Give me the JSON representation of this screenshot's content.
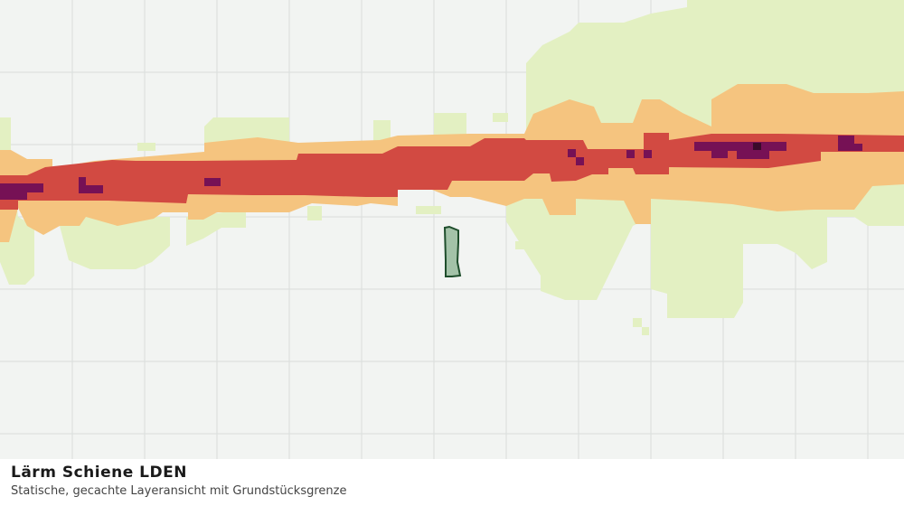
{
  "title": "Lärm Schiene LDEN",
  "subtitle": "Statische, gecachte Layeransicht mit Grundstücksgrenze"
}
